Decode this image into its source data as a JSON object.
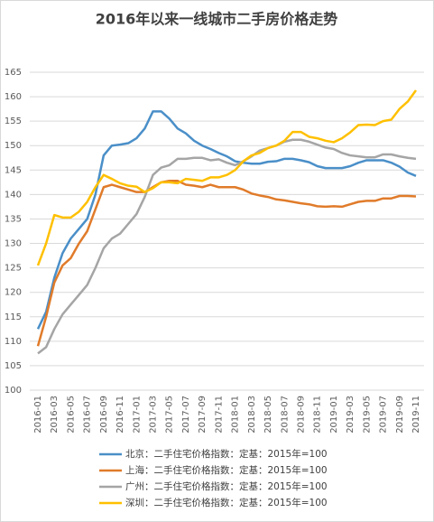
{
  "chart_data": {
    "type": "line",
    "title": "2016年以来一线城市二手房价格走势",
    "categories": [
      "2016-01",
      null,
      "2016-03",
      null,
      "2016-05",
      null,
      "2016-07",
      null,
      "2016-09",
      null,
      "2016-11",
      null,
      "2017-01",
      null,
      "2017-03",
      null,
      "2017-05",
      null,
      "2017-07",
      null,
      "2017-09",
      null,
      "2017-11",
      null,
      "2018-01",
      null,
      "2018-03",
      null,
      "2018-05",
      null,
      "2018-07",
      null,
      "2018-09",
      null,
      "2018-11",
      null,
      "2019-01",
      null,
      "2019-03",
      null,
      "2019-05",
      null,
      "2019-07",
      null,
      "2019-09",
      null,
      "2019-11"
    ],
    "series": [
      {
        "name": "北京：二手住宅价格指数：定基：2015年=100",
        "color": "#4a8fc8",
        "values": [
          112.5,
          116,
          123,
          128,
          131,
          133,
          135,
          140,
          148,
          150,
          150.2,
          150.5,
          151.5,
          153.5,
          157,
          157,
          155.5,
          153.5,
          152.5,
          151,
          150,
          149.3,
          148.5,
          147.8,
          146.8,
          146.5,
          146.3,
          146.3,
          146.7,
          146.8,
          147.3,
          147.3,
          147,
          146.6,
          145.8,
          145.4,
          145.4,
          145.4,
          145.8,
          146.5,
          147,
          147,
          147,
          146.5,
          145.7,
          144.5,
          143.8
        ]
      },
      {
        "name": "上海：二手住宅价格指数：定基：2015年=100",
        "color": "#e07b2a",
        "values": [
          109,
          115,
          122,
          125.5,
          127,
          130,
          132.5,
          137,
          141.5,
          142,
          141.5,
          141,
          140.5,
          140.5,
          141.5,
          142.5,
          142.8,
          142.8,
          142,
          141.8,
          141.5,
          142,
          141.5,
          141.5,
          141.5,
          141,
          140.2,
          139.8,
          139.5,
          139,
          138.8,
          138.5,
          138.2,
          138,
          137.6,
          137.5,
          137.6,
          137.5,
          138,
          138.5,
          138.7,
          138.7,
          139.2,
          139.2,
          139.7,
          139.7,
          139.6
        ]
      },
      {
        "name": "广州：二手住宅价格指数：定基：2015年=100",
        "color": "#a5a5a5",
        "values": [
          107.5,
          108.8,
          112.5,
          115.5,
          117.5,
          119.5,
          121.5,
          125,
          129,
          131,
          132,
          134,
          136,
          139.5,
          144,
          145.5,
          146,
          147.3,
          147.3,
          147.5,
          147.5,
          147,
          147.2,
          146.5,
          146,
          146.8,
          147.8,
          149,
          149.5,
          150,
          150.8,
          151.2,
          151.2,
          150.8,
          150.2,
          149.6,
          149.3,
          148.5,
          148,
          147.8,
          147.6,
          147.6,
          148.2,
          148.2,
          147.8,
          147.5,
          147.3
        ]
      },
      {
        "name": "深圳：二手住宅价格指数：定基：2015年=100",
        "color": "#ffc000",
        "values": [
          125.5,
          130,
          135.8,
          135.3,
          135.3,
          136.5,
          138.5,
          141.5,
          144,
          143.2,
          142.3,
          141.8,
          141.6,
          140.5,
          141.3,
          142.5,
          142.5,
          142.3,
          143.2,
          143,
          142.8,
          143.5,
          143.5,
          144,
          145,
          146.8,
          148,
          148.5,
          149.5,
          150,
          151,
          152.8,
          152.8,
          151.8,
          151.5,
          151,
          150.7,
          151.5,
          152.7,
          154.2,
          154.3,
          154.2,
          155,
          155.3,
          157.5,
          159,
          161.3
        ]
      }
    ],
    "ylim": [
      100,
      165
    ],
    "yticks": [
      100,
      105,
      110,
      115,
      120,
      125,
      130,
      135,
      140,
      145,
      150,
      155,
      160,
      165
    ],
    "grid": true
  }
}
